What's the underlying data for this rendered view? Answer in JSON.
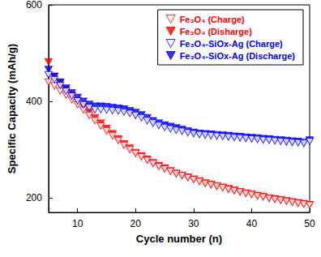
{
  "chart_data": {
    "type": "scatter",
    "x_label": "Cycle number (n)",
    "y_label": "Specific Capacity (mAh/g)",
    "xlim": [
      5,
      50
    ],
    "xticks": [
      10,
      20,
      30,
      40,
      50
    ],
    "ylim": [
      170,
      600
    ],
    "yticks": [
      200,
      400,
      600
    ],
    "grid": false,
    "legend": "upper right",
    "x": [
      5,
      6,
      7,
      8,
      9,
      10,
      11,
      12,
      13,
      14,
      15,
      16,
      17,
      18,
      19,
      20,
      21,
      22,
      23,
      24,
      25,
      26,
      27,
      28,
      29,
      30,
      31,
      32,
      33,
      34,
      35,
      36,
      37,
      38,
      39,
      40,
      41,
      42,
      43,
      44,
      45,
      46,
      47,
      48,
      49,
      50
    ],
    "series": [
      {
        "name": "Fe₃O₄ (Charge)",
        "color": "#ff0000",
        "marker": "triangle-down-open",
        "values": [
          440,
          432,
          422,
          413,
          403,
          393,
          382,
          371,
          360,
          349,
          339,
          329,
          319,
          309,
          300,
          292,
          285,
          278,
          271,
          265,
          260,
          255,
          250,
          246,
          242,
          238,
          234,
          230,
          227,
          224,
          221,
          218,
          215,
          212,
          209,
          207,
          204,
          202,
          199,
          197,
          195,
          193,
          191,
          189,
          187,
          185
        ]
      },
      {
        "name": "Fe₃O₄ (Disharge)",
        "color": "#ff0000",
        "marker": "triangle-down",
        "values": [
          482,
          452,
          438,
          425,
          413,
          402,
          390,
          378,
          366,
          355,
          344,
          333,
          322,
          312,
          303,
          294,
          287,
          280,
          273,
          267,
          262,
          256,
          251,
          247,
          243,
          239,
          235,
          231,
          228,
          225,
          222,
          219,
          216,
          213,
          210,
          208,
          205,
          203,
          200,
          198,
          196,
          194,
          192,
          190,
          188,
          186
        ]
      },
      {
        "name": "Fe₃O₄-SiOx-Ag (Charge)",
        "color": "#0000ff",
        "marker": "triangle-down-open",
        "values": [
          455,
          445,
          433,
          421,
          411,
          401,
          393,
          387,
          383,
          383,
          382,
          381,
          380,
          378,
          375,
          371,
          366,
          360,
          355,
          350,
          346,
          343,
          340,
          338,
          335,
          333,
          331,
          330,
          329,
          328,
          327,
          326,
          325,
          324,
          323,
          322,
          321,
          320,
          319,
          318,
          317,
          316,
          315,
          314,
          313,
          317
        ]
      },
      {
        "name": "Fe₃O₄-SiOx-Ag (Discharge)",
        "color": "#0000ff",
        "marker": "triangle-down",
        "values": [
          466,
          452,
          440,
          428,
          418,
          408,
          400,
          394,
          390,
          390,
          389,
          387,
          386,
          384,
          381,
          377,
          372,
          366,
          360,
          355,
          351,
          348,
          345,
          342,
          339,
          336,
          334,
          333,
          332,
          331,
          330,
          329,
          328,
          327,
          326,
          325,
          324,
          323,
          322,
          321,
          320,
          319,
          318,
          317,
          315,
          320
        ]
      }
    ]
  }
}
